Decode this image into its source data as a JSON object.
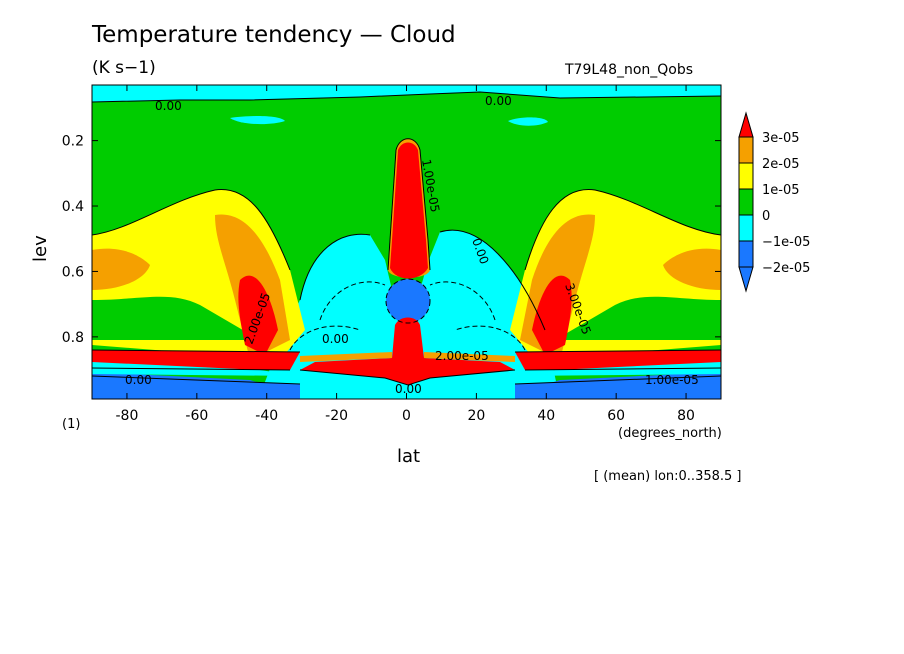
{
  "title": "Temperature tendency — Cloud",
  "units": "(K s−1)",
  "run_name": "T79L48_non_Qobs",
  "footer": "[ (mean) lon:0..358.5 ]",
  "chart_data": {
    "type": "heatmap",
    "xlabel": "lat",
    "x_units": "(degrees_north)",
    "ylabel": "lev",
    "y_units": "(1)",
    "xlim": [
      -90,
      90
    ],
    "ylim": [
      0.99,
      0.03
    ],
    "x_ticks": [
      -80,
      -60,
      -40,
      -20,
      0,
      20,
      40,
      60,
      80
    ],
    "y_ticks": [
      0.2,
      0.4,
      0.6,
      0.8
    ],
    "colorbar": {
      "labels": [
        "3e-05",
        "2e-05",
        "1e-05",
        "0",
        "−1e-05",
        "−2e-05"
      ],
      "colors": [
        "#ff0000",
        "#f5a000",
        "#ffff00",
        "#00cc00",
        "#00ffff",
        "#1a78ff",
        "#1a78ff"
      ],
      "over_color": "#ff0000",
      "under_color": "#1a78ff"
    },
    "contour_labels": [
      "0.00",
      "0.00",
      "0.00",
      "0.00",
      "0.00",
      "0.00",
      "2.00e-05",
      "2.00e-05",
      "3.00e-05",
      "1.00e-05",
      "1.00e-05"
    ]
  }
}
